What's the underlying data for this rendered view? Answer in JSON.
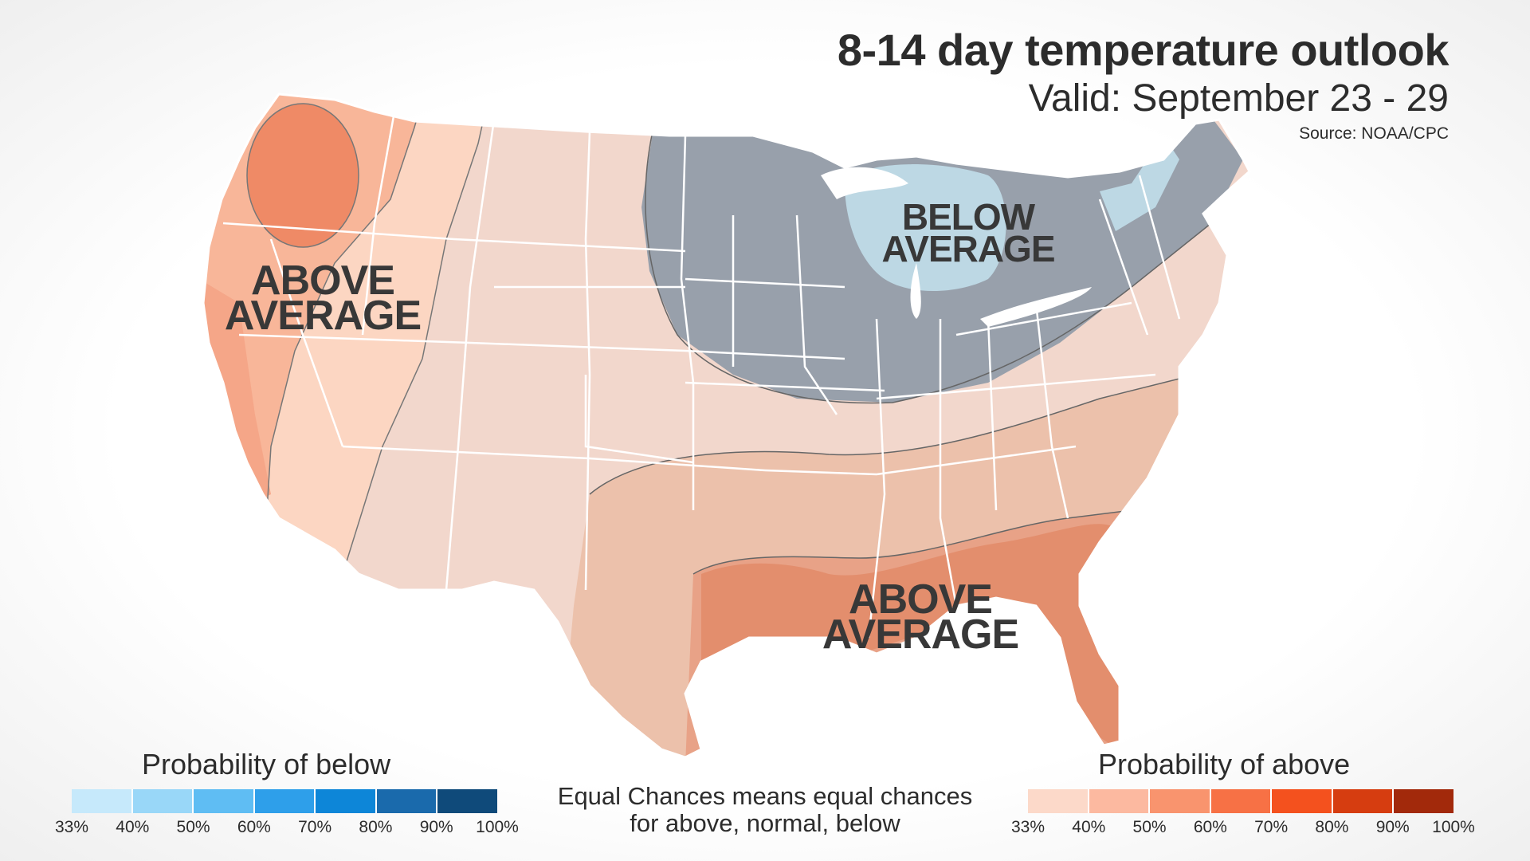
{
  "title": "8-14 day temperature outlook",
  "subtitle": "Valid: September 23 - 29",
  "source": "Source: NOAA/CPC",
  "labels": {
    "west_above": [
      "ABOVE",
      "AVERAGE"
    ],
    "south_above": [
      "ABOVE",
      "AVERAGE"
    ],
    "north_below": [
      "BELOW",
      "AVERAGE"
    ]
  },
  "legend_below": {
    "title": "Probability of below",
    "colors": [
      "#c6e9fb",
      "#99d7f8",
      "#5fbdf3",
      "#2e9fea",
      "#0d86d8",
      "#1a6aac",
      "#0f4a7a"
    ],
    "ticks": [
      "33%",
      "40%",
      "50%",
      "60%",
      "70%",
      "80%",
      "90%",
      "100%"
    ]
  },
  "legend_above": {
    "title": "Probability of above",
    "colors": [
      "#fcd9c9",
      "#fcb9a0",
      "#f9946e",
      "#f77145",
      "#f4511e",
      "#d63d10",
      "#a2290b"
    ],
    "ticks": [
      "33%",
      "40%",
      "50%",
      "60%",
      "70%",
      "80%",
      "90%",
      "100%"
    ]
  },
  "note": "Equal Chances means equal chances for above, normal, below",
  "map_colors": {
    "base": "#f2d7cc",
    "west_light": "#fcd6c2",
    "west_mid": "#f8b699",
    "west_dark": "#ef8a66",
    "south_light": "#ecc1ab",
    "south_mid": "#e8a287",
    "south_dark": "#e38e6d",
    "below_gray": "#98a0ab",
    "below_blue": "#bdd8e4"
  }
}
